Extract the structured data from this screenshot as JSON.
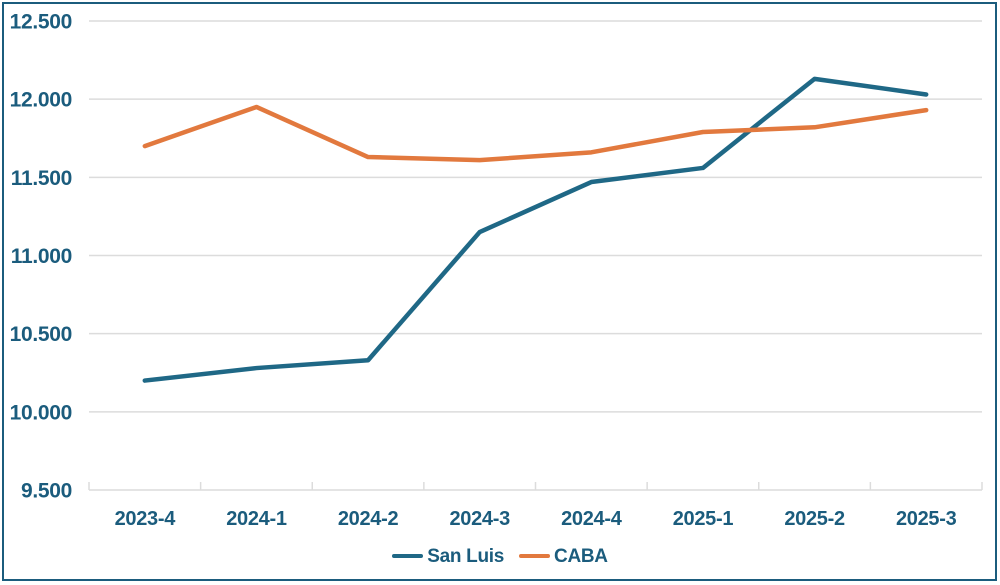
{
  "chart_data": {
    "type": "line",
    "title": "",
    "xlabel": "",
    "ylabel": "",
    "categories": [
      "2023-4",
      "2024-1",
      "2024-2",
      "2024-3",
      "2024-4",
      "2025-1",
      "2025-2",
      "2025-3"
    ],
    "series": [
      {
        "name": "San Luis",
        "color": "#1f6886",
        "values": [
          10200,
          10280,
          10330,
          11150,
          11470,
          11560,
          12130,
          12030
        ]
      },
      {
        "name": "CABA",
        "color": "#e2793e",
        "values": [
          11700,
          11950,
          11630,
          11610,
          11660,
          11790,
          11820,
          11930
        ]
      }
    ],
    "ylim": [
      9500,
      12500
    ],
    "ytick_step": 500,
    "yticks": [
      {
        "value": 9500,
        "label": "9.500"
      },
      {
        "value": 10000,
        "label": "10.000"
      },
      {
        "value": 10500,
        "label": "10.500"
      },
      {
        "value": 11000,
        "label": "11.000"
      },
      {
        "value": 11500,
        "label": "11.500"
      },
      {
        "value": 12000,
        "label": "12.000"
      },
      {
        "value": 12500,
        "label": "12.500"
      }
    ],
    "grid": true,
    "legend_position": "bottom"
  },
  "styles": {
    "axis_text_color": "#1b5c7d",
    "grid_color": "#dcdcdc",
    "frame_border_color": "#1b5c7d",
    "background": "#ffffff"
  }
}
